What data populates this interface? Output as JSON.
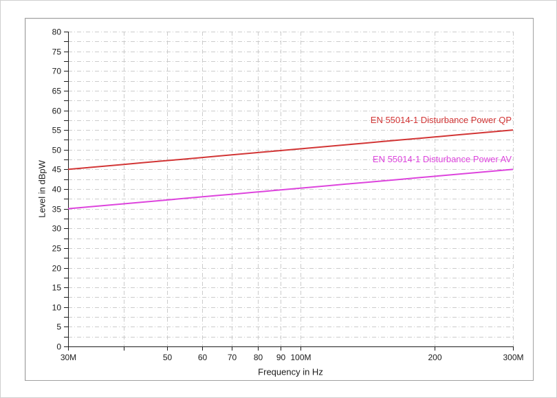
{
  "panel": {
    "background": "#ffffff",
    "border_color": "#a0a0a0"
  },
  "chart_data": {
    "type": "line",
    "title": "",
    "xlabel": "Frequency in Hz",
    "ylabel": "Level in dBpW",
    "x_scale": "log",
    "x_unit": "MHz",
    "xlim": [
      30,
      300
    ],
    "ylim": [
      0,
      80
    ],
    "y_major_step": 5,
    "y_minor_step": 2.5,
    "x_ticks": [
      {
        "value": 30,
        "label": "30M"
      },
      {
        "value": 40,
        "label": ""
      },
      {
        "value": 50,
        "label": "50"
      },
      {
        "value": 60,
        "label": "60"
      },
      {
        "value": 70,
        "label": "70"
      },
      {
        "value": 80,
        "label": "80"
      },
      {
        "value": 90,
        "label": "90"
      },
      {
        "value": 100,
        "label": "100M"
      },
      {
        "value": 200,
        "label": "200"
      },
      {
        "value": 300,
        "label": "300M"
      }
    ],
    "grid": {
      "style": "dash-dot",
      "color": "#cbcbcb",
      "horizontal_every": 2.5,
      "vertical_at_ticks": true
    },
    "axis_color": "#1a1a1a",
    "tick_label_color": "#1a1a1a",
    "legend_position": "inline-right",
    "series": [
      {
        "name": "EN 55014-1 Disturbance Power QP",
        "color": "#d23535",
        "interpolation": "log-linear",
        "points": [
          {
            "x": 30,
            "y": 45
          },
          {
            "x": 300,
            "y": 55
          }
        ]
      },
      {
        "name": "EN 55014-1 Disturbance Power AV",
        "color": "#dd44dd",
        "interpolation": "log-linear",
        "points": [
          {
            "x": 30,
            "y": 35
          },
          {
            "x": 300,
            "y": 45
          }
        ]
      }
    ]
  }
}
